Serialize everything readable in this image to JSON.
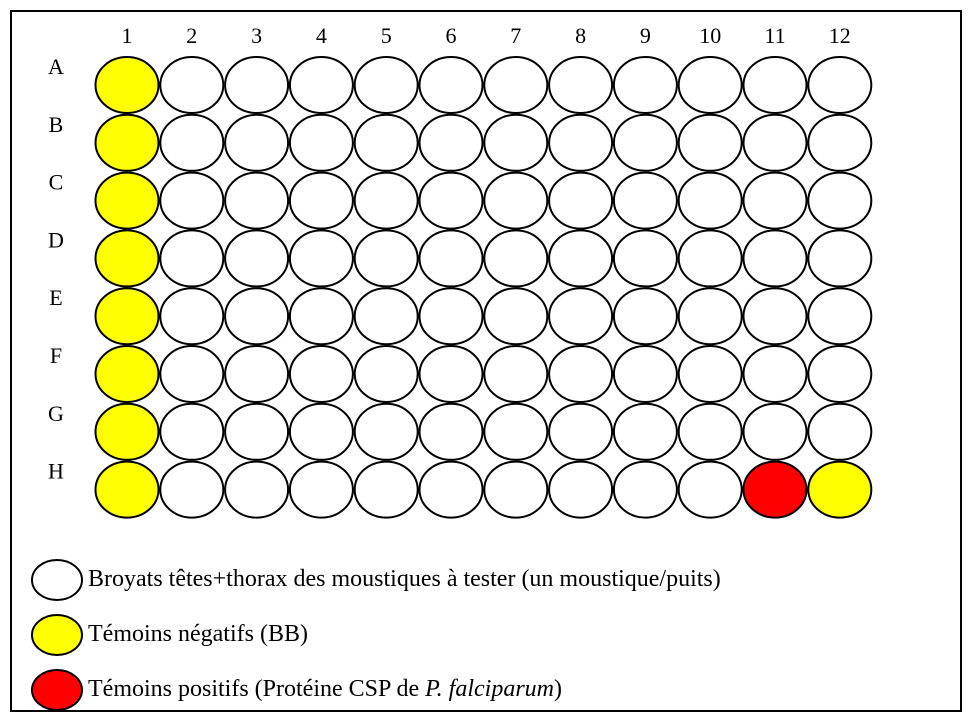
{
  "plate": {
    "columns": [
      "1",
      "2",
      "3",
      "4",
      "5",
      "6",
      "7",
      "8",
      "9",
      "10",
      "11",
      "12"
    ],
    "rows": [
      "A",
      "B",
      "C",
      "D",
      "E",
      "F",
      "G",
      "H"
    ]
  },
  "legend": [
    {
      "text": "Broyats têtes+thorax des moustiques à tester (un moustique/puits)",
      "color": "#ffffff"
    },
    {
      "text": "Témoins négatifs (BB)",
      "color": "#ffff00"
    },
    {
      "text": "Témoins positifs (Protéine CSP de ",
      "italic": "P. falciparum",
      "after": ")",
      "color": "#ff0000"
    }
  ]
}
